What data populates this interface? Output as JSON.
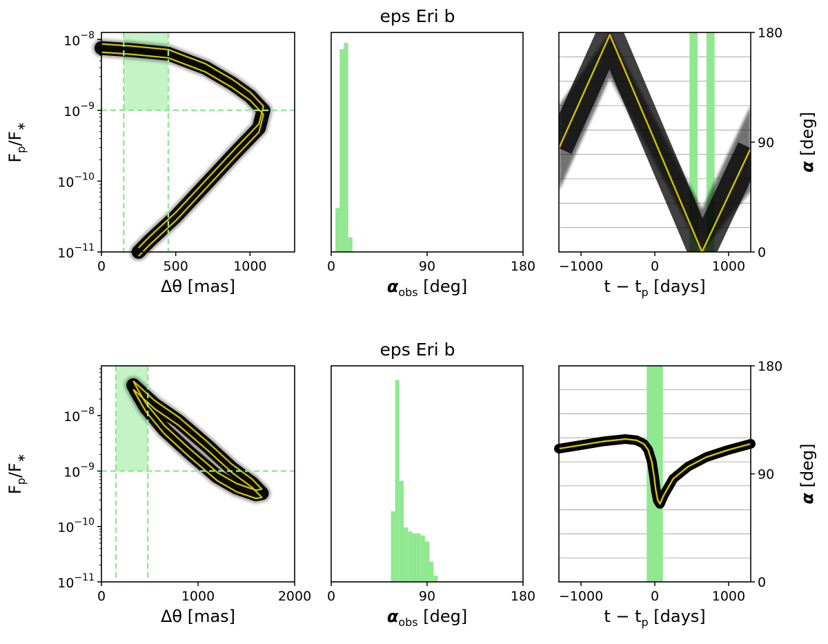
{
  "chart_data": [
    {
      "row": "top",
      "title": "eps Eri b",
      "panels": [
        {
          "type": "scatter",
          "name": "separation-flux",
          "xlabel": "Δθ [mas]",
          "ylabel": "F_p/F_*",
          "xlim": [
            0,
            1300
          ],
          "ylim_log10": [
            -11,
            -7.9
          ],
          "xticks": [
            0,
            500,
            1000
          ],
          "xtick_labels": [
            "0",
            "500",
            "1000"
          ],
          "yticks_log10": [
            -11,
            -10,
            -9,
            -8
          ],
          "ytick_labels": [
            [
              "10",
              "−11"
            ],
            [
              "10",
              "−10"
            ],
            [
              "10",
              "−9"
            ],
            [
              "10",
              "−8"
            ]
          ],
          "contrast_limit": 1e-09,
          "iwa_mas": 150,
          "owa_mas": 450,
          "orbit_track": [
            [
              0,
              -8.12
            ],
            [
              200,
              -8.15
            ],
            [
              450,
              -8.2
            ],
            [
              700,
              -8.4
            ],
            [
              880,
              -8.62
            ],
            [
              1000,
              -8.8
            ],
            [
              1090,
              -9.0
            ],
            [
              1060,
              -9.25
            ],
            [
              900,
              -9.6
            ],
            [
              700,
              -10.05
            ],
            [
              500,
              -10.5
            ],
            [
              320,
              -10.85
            ],
            [
              250,
              -11.0
            ]
          ]
        },
        {
          "type": "histogram",
          "name": "phase-hist",
          "xlabel": "α_obs [deg]",
          "xlim": [
            0,
            180
          ],
          "xticks": [
            0,
            90,
            180
          ],
          "xtick_labels": [
            "0",
            "90",
            "180"
          ],
          "bin_width": 4,
          "bins": [
            [
              4,
              0.21
            ],
            [
              8,
              0.97
            ],
            [
              12,
              1.0
            ],
            [
              16,
              0.07
            ]
          ],
          "hist_max": 1.05
        },
        {
          "type": "line",
          "name": "phase-time",
          "xlabel": "t − t_p [days]",
          "y2label": "α [deg]",
          "xlim": [
            -1300,
            1300
          ],
          "ylim": [
            0,
            180
          ],
          "xticks": [
            -1000,
            0,
            1000
          ],
          "xtick_labels": [
            "−1000",
            "0",
            "1000"
          ],
          "yticks": [
            0,
            90,
            180
          ],
          "ytick_labels": [
            "0",
            "90",
            "180"
          ],
          "obs_windows": [
            [
              470,
              580
            ],
            [
              700,
              810
            ]
          ],
          "spread_deg": 35,
          "phase_curve": [
            [
              -1300,
              85
            ],
            [
              -610,
              178
            ],
            [
              640,
              0
            ],
            [
              1300,
              85
            ]
          ]
        }
      ]
    },
    {
      "row": "bottom",
      "title": "eps Eri b",
      "panels": [
        {
          "type": "scatter",
          "name": "separation-flux",
          "xlabel": "Δθ [mas]",
          "ylabel": "F_p/F_*",
          "xlim": [
            0,
            2000
          ],
          "ylim_log10": [
            -11,
            -7.1
          ],
          "xticks": [
            0,
            1000,
            2000
          ],
          "xtick_labels": [
            "0",
            "1000",
            "2000"
          ],
          "yticks_log10": [
            -11,
            -10,
            -9,
            -8
          ],
          "ytick_labels": [
            [
              "10",
              "−11"
            ],
            [
              "10",
              "−10"
            ],
            [
              "10",
              "−9"
            ],
            [
              "10",
              "−8"
            ]
          ],
          "contrast_limit": 1e-09,
          "iwa_mas": 150,
          "owa_mas": 480,
          "orbit_track": [
            [
              330,
              -7.45
            ],
            [
              550,
              -7.8
            ],
            [
              800,
              -8.1
            ],
            [
              1100,
              -8.55
            ],
            [
              1350,
              -8.95
            ],
            [
              1560,
              -9.22
            ],
            [
              1660,
              -9.4
            ],
            [
              1600,
              -9.42
            ],
            [
              1400,
              -9.3
            ],
            [
              1200,
              -9.1
            ],
            [
              900,
              -8.65
            ],
            [
              650,
              -8.25
            ],
            [
              460,
              -7.85
            ],
            [
              360,
              -7.55
            ],
            [
              330,
              -7.45
            ]
          ]
        },
        {
          "type": "histogram",
          "name": "phase-hist",
          "xlabel": "α_obs [deg]",
          "xlim": [
            0,
            180
          ],
          "xticks": [
            0,
            90,
            180
          ],
          "xtick_labels": [
            "0",
            "90",
            "180"
          ],
          "bin_width": 4,
          "bins": [
            [
              56,
              0.35
            ],
            [
              60,
              1.0
            ],
            [
              64,
              0.5
            ],
            [
              68,
              0.27
            ],
            [
              72,
              0.25
            ],
            [
              76,
              0.24
            ],
            [
              80,
              0.24
            ],
            [
              84,
              0.23
            ],
            [
              88,
              0.2
            ],
            [
              92,
              0.1
            ],
            [
              96,
              0.03
            ]
          ],
          "hist_max": 1.07
        },
        {
          "type": "line",
          "name": "phase-time",
          "xlabel": "t − t_p [days]",
          "y2label": "α [deg]",
          "xlim": [
            -1300,
            1300
          ],
          "ylim": [
            0,
            180
          ],
          "xticks": [
            -1000,
            0,
            1000
          ],
          "xtick_labels": [
            "−1000",
            "0",
            "1000"
          ],
          "yticks": [
            0,
            90,
            180
          ],
          "ytick_labels": [
            "0",
            "90",
            "180"
          ],
          "obs_windows": [
            [
              -110,
              110
            ]
          ],
          "phase_curve": [
            [
              -1300,
              111
            ],
            [
              -1000,
              114
            ],
            [
              -700,
              117
            ],
            [
              -400,
              119
            ],
            [
              -250,
              118
            ],
            [
              -150,
              115
            ],
            [
              -90,
              110
            ],
            [
              -40,
              100
            ],
            [
              -10,
              88
            ],
            [
              15,
              76
            ],
            [
              40,
              68
            ],
            [
              70,
              65
            ],
            [
              120,
              72
            ],
            [
              250,
              86
            ],
            [
              450,
              96
            ],
            [
              700,
              104
            ],
            [
              1000,
              110
            ],
            [
              1300,
              115
            ]
          ]
        }
      ]
    }
  ]
}
